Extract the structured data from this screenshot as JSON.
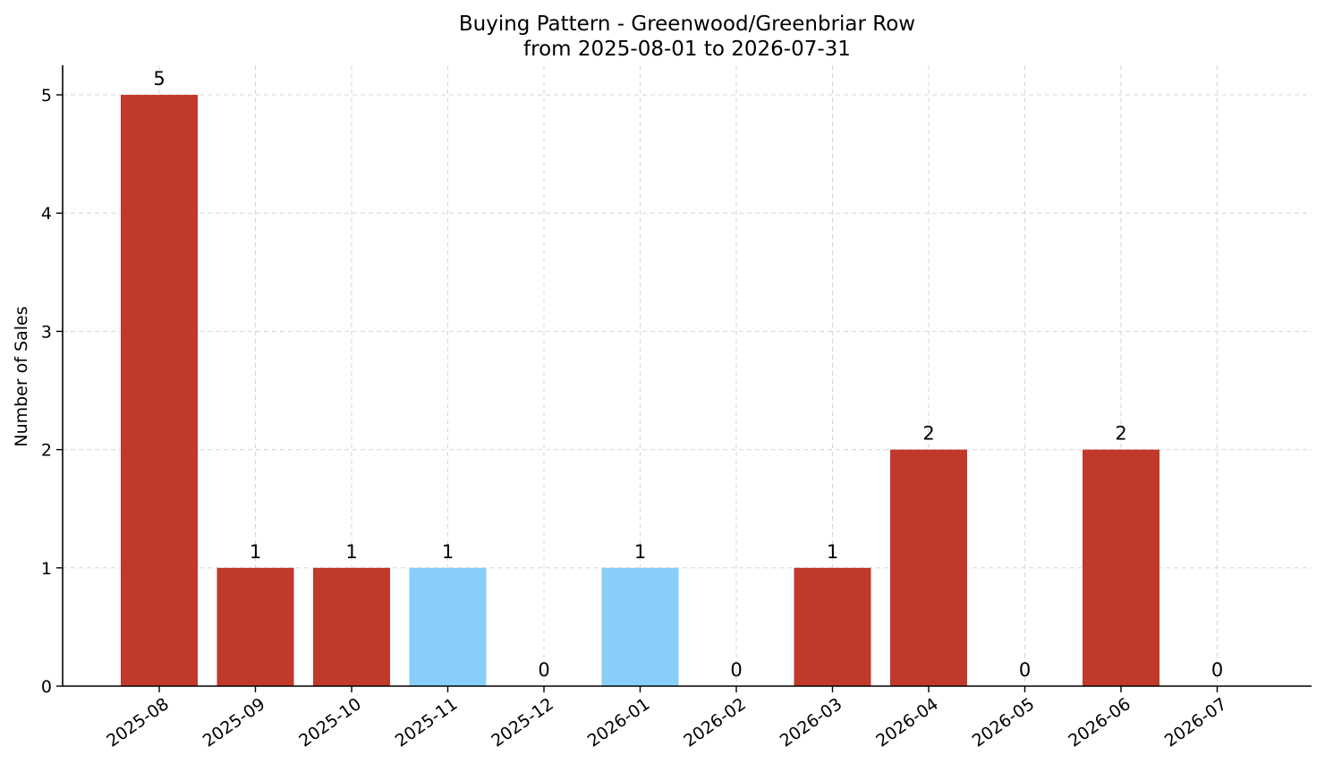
{
  "chart_data": {
    "type": "bar",
    "title": "Buying Pattern - Greenwood/Greenbriar Row",
    "subtitle": "from 2025-08-01 to 2026-07-31",
    "xlabel": "",
    "ylabel": "Number of Sales",
    "categories": [
      "2025-08",
      "2025-09",
      "2025-10",
      "2025-11",
      "2025-12",
      "2026-01",
      "2026-02",
      "2026-03",
      "2026-04",
      "2026-05",
      "2026-06",
      "2026-07"
    ],
    "values": [
      5,
      1,
      1,
      1,
      0,
      1,
      0,
      1,
      2,
      0,
      2,
      0
    ],
    "bar_colors": [
      "#c0392b",
      "#c0392b",
      "#c0392b",
      "#87cefa",
      "#c0392b",
      "#87cefa",
      "#c0392b",
      "#c0392b",
      "#c0392b",
      "#c0392b",
      "#c0392b",
      "#c0392b"
    ],
    "yticks": [
      0,
      1,
      2,
      3,
      4,
      5
    ],
    "ylim": [
      0,
      5.25
    ],
    "grid": true,
    "legend": "none"
  }
}
